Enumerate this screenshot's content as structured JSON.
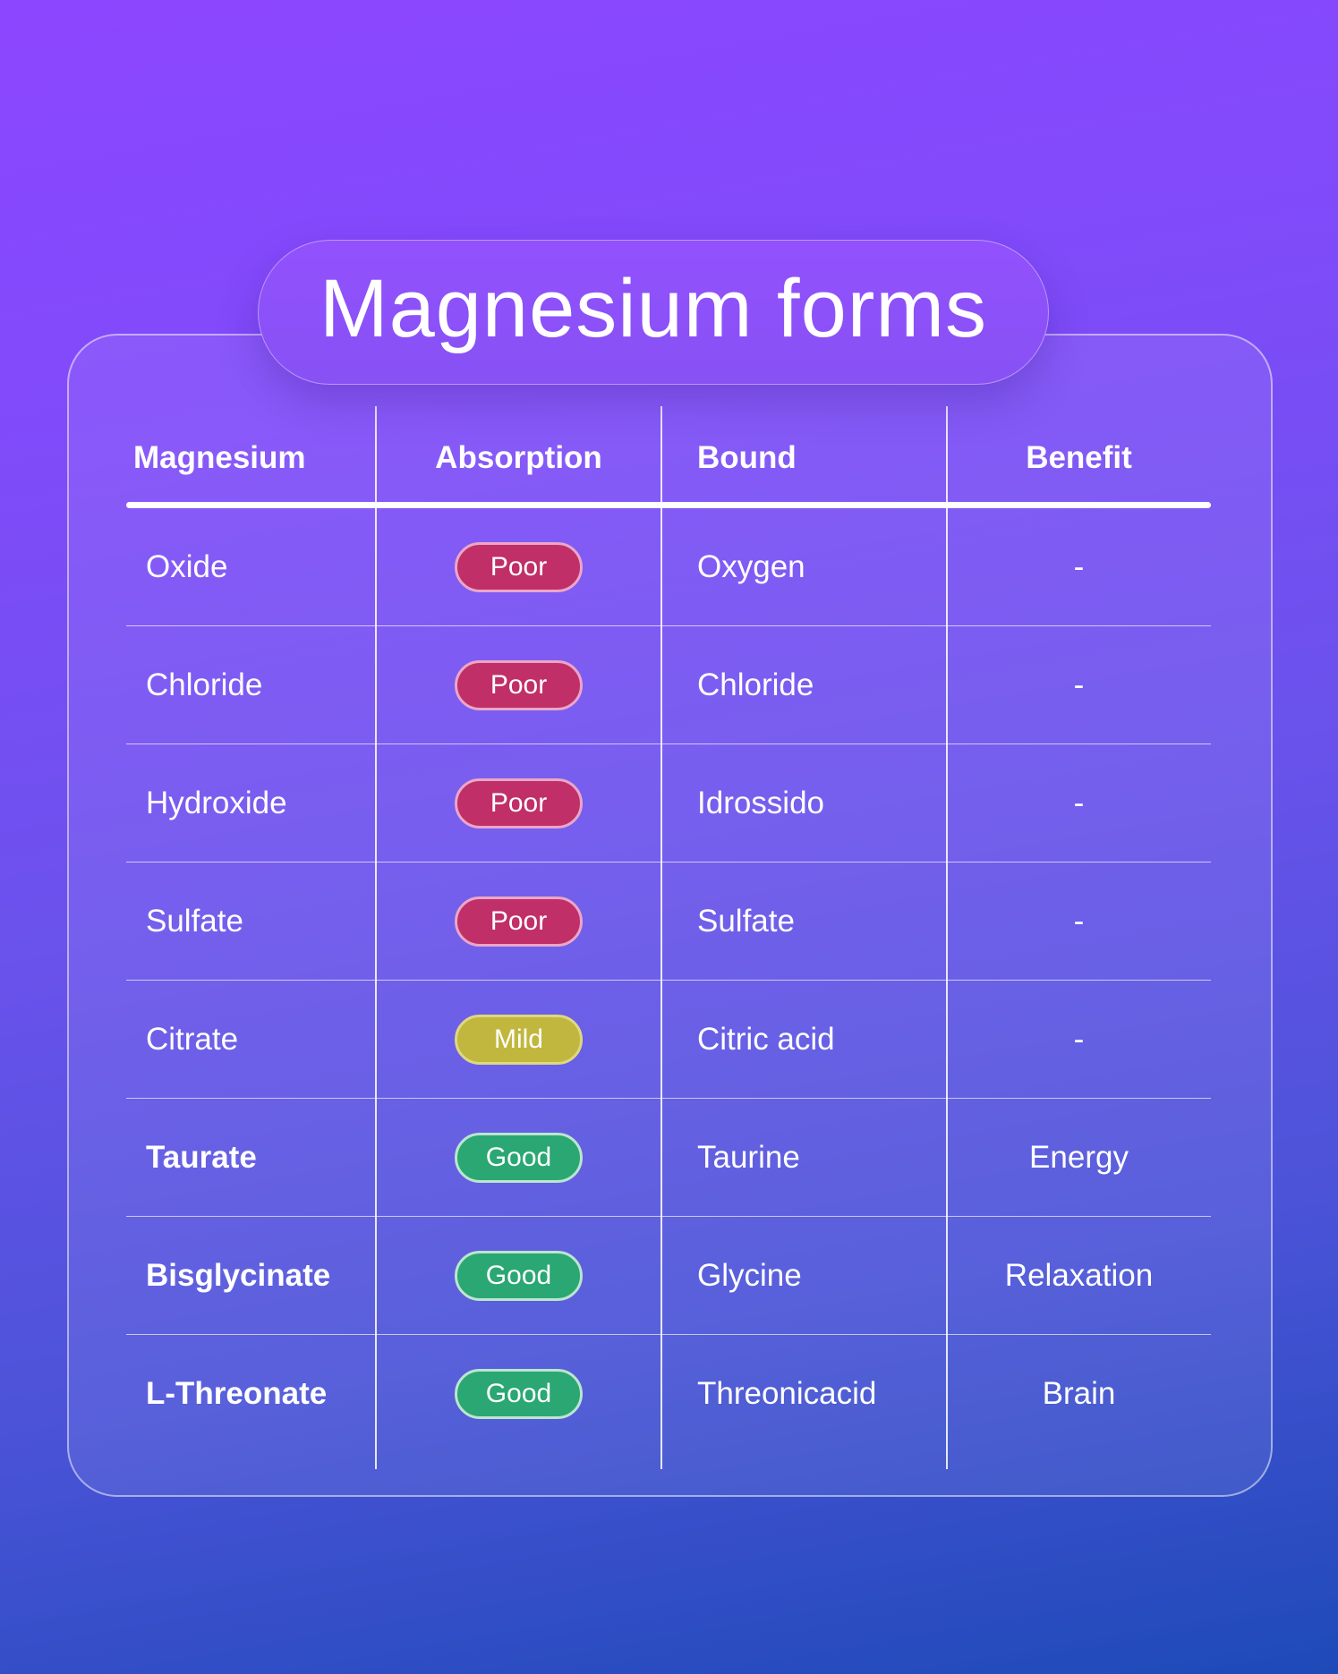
{
  "header": {
    "title": "Magnesium forms"
  },
  "chart_data": {
    "type": "table",
    "title": "Magnesium forms",
    "columns": [
      "Magnesium",
      "Absorption",
      "Bound",
      "Benefit"
    ],
    "rows": [
      {
        "magnesium": "Oxide",
        "absorption": "Poor",
        "absorption_level": "poor",
        "bound": "Oxygen",
        "benefit": "-",
        "emphasis": false
      },
      {
        "magnesium": "Chloride",
        "absorption": "Poor",
        "absorption_level": "poor",
        "bound": "Chloride",
        "benefit": "-",
        "emphasis": false
      },
      {
        "magnesium": "Hydroxide",
        "absorption": "Poor",
        "absorption_level": "poor",
        "bound": "Idrossido",
        "benefit": "-",
        "emphasis": false
      },
      {
        "magnesium": "Sulfate",
        "absorption": "Poor",
        "absorption_level": "poor",
        "bound": "Sulfate",
        "benefit": "-",
        "emphasis": false
      },
      {
        "magnesium": "Citrate",
        "absorption": "Mild",
        "absorption_level": "mild",
        "bound": "Citric acid",
        "benefit": "-",
        "emphasis": false
      },
      {
        "magnesium": "Taurate",
        "absorption": "Good",
        "absorption_level": "good",
        "bound": "Taurine",
        "benefit": "Energy",
        "emphasis": true
      },
      {
        "magnesium": "Bisglycinate",
        "absorption": "Good",
        "absorption_level": "good",
        "bound": "Glycine",
        "benefit": "Relaxation",
        "emphasis": true
      },
      {
        "magnesium": "L-Threonate",
        "absorption": "Good",
        "absorption_level": "good",
        "bound": "Threonicacid",
        "benefit": "Brain",
        "emphasis": true
      }
    ],
    "layout_hints": {
      "grid": "column dividers + row separators",
      "badge_column": "Absorption"
    }
  },
  "colors": {
    "poor": "#c02f67",
    "poor_border": "#eba6c8",
    "mild": "#c1b73e",
    "mild_border": "#ded87f",
    "good": "#2aa773",
    "good_border": "#bce5cf",
    "background_top": "#8c46ff",
    "background_bottom": "#1e4ab8",
    "text": "#ffffff"
  }
}
